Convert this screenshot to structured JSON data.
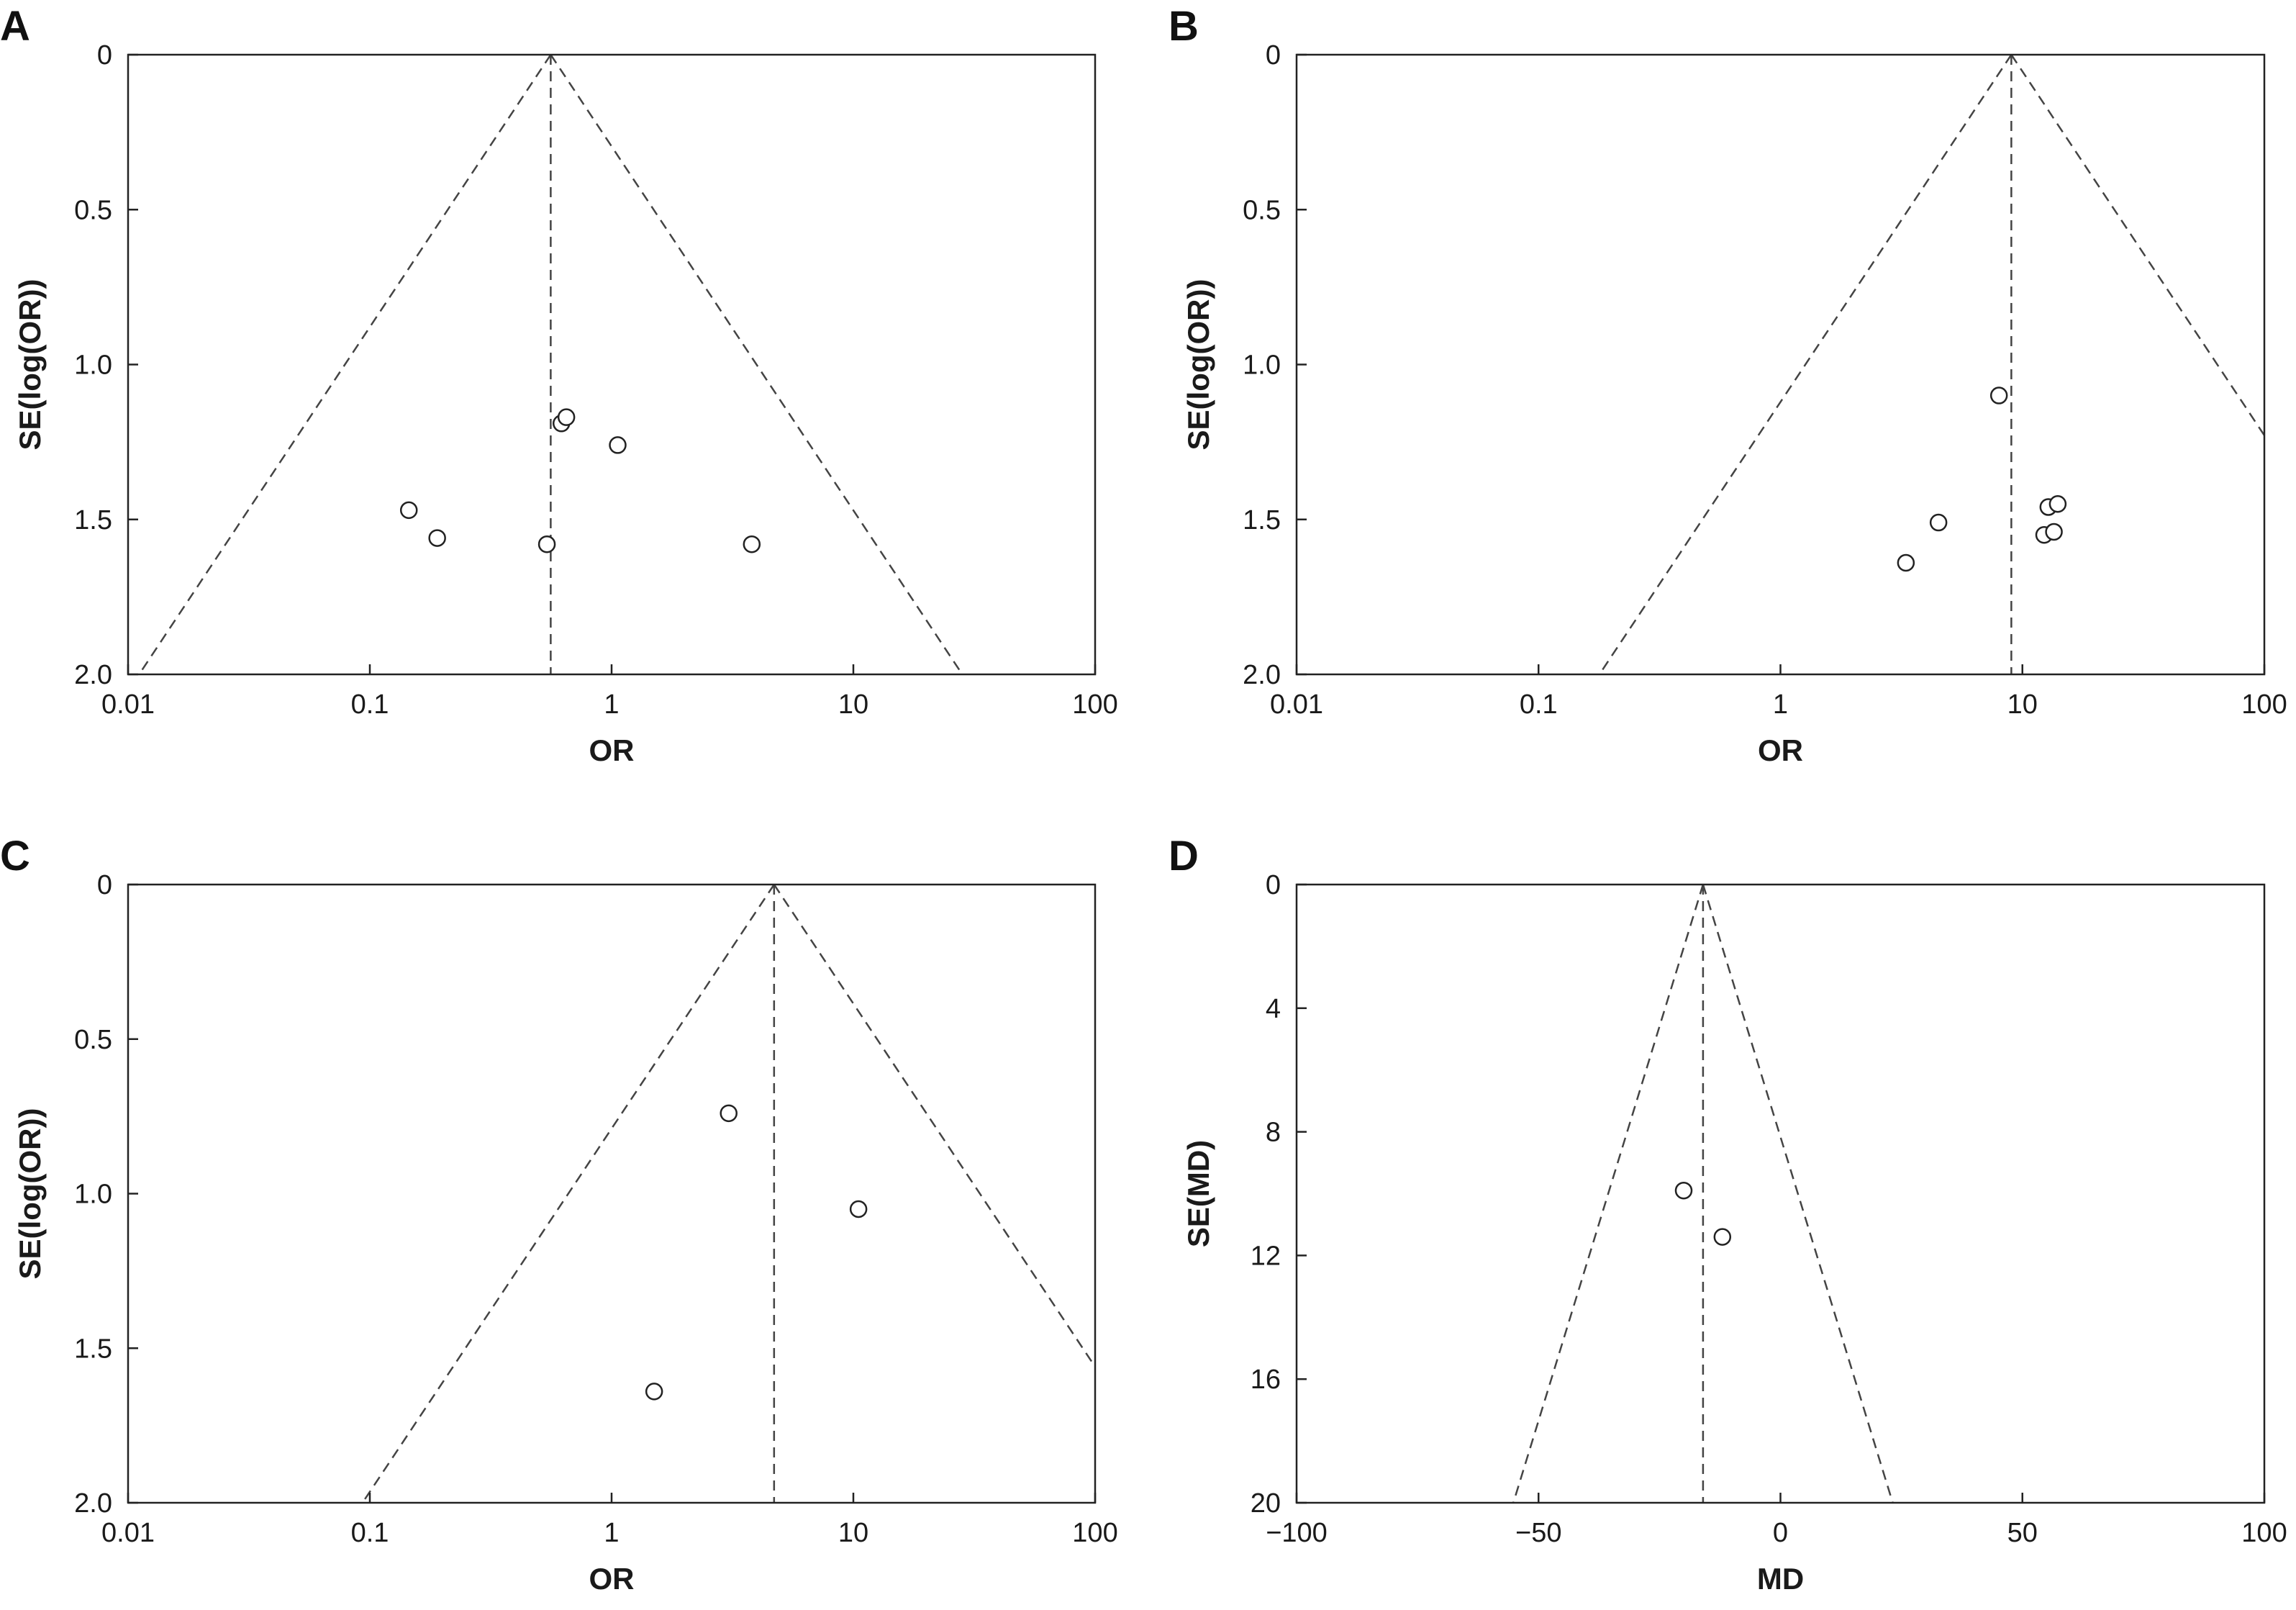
{
  "chart_data": [
    {
      "panel": "A",
      "type": "scatter",
      "xlabel": "OR",
      "ylabel": "SE(log(OR))",
      "xscale": "log",
      "xlim": [
        0.01,
        100
      ],
      "ylim": [
        0,
        2.0
      ],
      "y_inverted": true,
      "xticks": [
        "0.01",
        "0.1",
        "1",
        "10",
        "100"
      ],
      "xtick_values": [
        0.01,
        0.1,
        1,
        10,
        100
      ],
      "yticks": [
        "0",
        "0.5",
        "1.0",
        "1.5",
        "2.0"
      ],
      "ytick_values": [
        0,
        0.5,
        1.0,
        1.5,
        2.0
      ],
      "pooled_estimate": 0.56,
      "funnel_line_style": "dashed",
      "points": [
        {
          "x": 0.145,
          "y": 1.47
        },
        {
          "x": 0.19,
          "y": 1.56
        },
        {
          "x": 0.54,
          "y": 1.58
        },
        {
          "x": 0.62,
          "y": 1.19
        },
        {
          "x": 0.65,
          "y": 1.17
        },
        {
          "x": 1.06,
          "y": 1.26
        },
        {
          "x": 3.8,
          "y": 1.58
        }
      ]
    },
    {
      "panel": "B",
      "type": "scatter",
      "xlabel": "OR",
      "ylabel": "SE(log(OR))",
      "xscale": "log",
      "xlim": [
        0.01,
        100
      ],
      "ylim": [
        0,
        2.0
      ],
      "y_inverted": true,
      "xticks": [
        "0.01",
        "0.1",
        "1",
        "10",
        "100"
      ],
      "xtick_values": [
        0.01,
        0.1,
        1,
        10,
        100
      ],
      "yticks": [
        "0",
        "0.5",
        "1.0",
        "1.5",
        "2.0"
      ],
      "ytick_values": [
        0,
        0.5,
        1.0,
        1.5,
        2.0
      ],
      "pooled_estimate": 9.0,
      "funnel_line_style": "dashed",
      "points": [
        {
          "x": 8.0,
          "y": 1.1
        },
        {
          "x": 3.3,
          "y": 1.64
        },
        {
          "x": 4.5,
          "y": 1.51
        },
        {
          "x": 12.3,
          "y": 1.55
        },
        {
          "x": 12.8,
          "y": 1.46
        },
        {
          "x": 13.5,
          "y": 1.54
        },
        {
          "x": 14.0,
          "y": 1.45
        }
      ]
    },
    {
      "panel": "C",
      "type": "scatter",
      "xlabel": "OR",
      "ylabel": "SE(log(OR))",
      "xscale": "log",
      "xlim": [
        0.01,
        100
      ],
      "ylim": [
        0,
        2.0
      ],
      "y_inverted": true,
      "xticks": [
        "0.01",
        "0.1",
        "1",
        "10",
        "100"
      ],
      "xtick_values": [
        0.01,
        0.1,
        1,
        10,
        100
      ],
      "yticks": [
        "0",
        "0.5",
        "1.0",
        "1.5",
        "2.0"
      ],
      "ytick_values": [
        0,
        0.5,
        1.0,
        1.5,
        2.0
      ],
      "pooled_estimate": 4.7,
      "funnel_line_style": "dashed",
      "points": [
        {
          "x": 3.05,
          "y": 0.74
        },
        {
          "x": 10.5,
          "y": 1.05
        },
        {
          "x": 1.5,
          "y": 1.64
        }
      ]
    },
    {
      "panel": "D",
      "type": "scatter",
      "xlabel": "MD",
      "ylabel": "SE(MD)",
      "xscale": "linear",
      "xlim": [
        -100,
        100
      ],
      "ylim": [
        0,
        20
      ],
      "y_inverted": true,
      "xticks": [
        "−100",
        "−50",
        "0",
        "50",
        "100"
      ],
      "xtick_values": [
        -100,
        -50,
        0,
        50,
        100
      ],
      "yticks": [
        "0",
        "4",
        "8",
        "12",
        "16",
        "20"
      ],
      "ytick_values": [
        0,
        4,
        8,
        12,
        16,
        20
      ],
      "pooled_estimate": -16.0,
      "funnel_line_style": "dashed",
      "points": [
        {
          "x": -20.0,
          "y": 9.9
        },
        {
          "x": -12.0,
          "y": 11.4
        }
      ]
    }
  ]
}
